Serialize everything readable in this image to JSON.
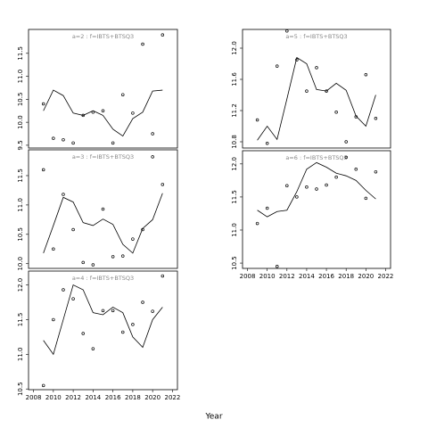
{
  "xlabel": "Year",
  "chart_data": [
    {
      "type": "line",
      "title": "a=2 : f=IBTS+BTSQ3",
      "x": [
        2009,
        2010,
        2011,
        2012,
        2013,
        2014,
        2015,
        2016,
        2017,
        2018,
        2019,
        2020,
        2021
      ],
      "xlim": [
        2007.5,
        2022.5
      ],
      "ylim": [
        9.44,
        12.02
      ],
      "yticks": [
        9.5,
        {
          "value": 10,
          "label": "10.0"
        },
        10.5,
        {
          "value": 11,
          "label": "11.0"
        },
        11.5
      ],
      "series": [
        {
          "style": "line",
          "color": "#000000",
          "values": [
            10.25,
            10.7,
            10.58,
            10.2,
            10.15,
            10.25,
            10.15,
            9.85,
            9.7,
            10.08,
            10.22,
            10.68,
            10.7
          ]
        },
        {
          "style": "points",
          "color": "#000000",
          "values": [
            10.4,
            9.65,
            9.62,
            9.55,
            10.15,
            10.22,
            10.25,
            9.55,
            10.6,
            10.2,
            11.7,
            9.75,
            11.9
          ]
        }
      ]
    },
    {
      "type": "line",
      "title": "a=3 : f=IBTS+BTSQ3",
      "x": [
        2009,
        2010,
        2011,
        2012,
        2013,
        2014,
        2015,
        2016,
        2017,
        2018,
        2019,
        2020,
        2021
      ],
      "xlim": [
        2007.5,
        2022.5
      ],
      "ylim": [
        9.92,
        11.94
      ],
      "yticks": [
        {
          "value": 10,
          "label": "10.0"
        },
        10.5,
        {
          "value": 11,
          "label": "11.0"
        },
        11.5
      ],
      "series": [
        {
          "style": "line",
          "color": "#000000",
          "values": [
            10.18,
            10.65,
            11.13,
            11.05,
            10.7,
            10.65,
            10.76,
            10.67,
            10.33,
            10.18,
            10.6,
            10.75,
            11.2
          ]
        },
        {
          "style": "points",
          "color": "#000000",
          "values": [
            11.6,
            10.25,
            11.18,
            10.58,
            10.02,
            9.98,
            10.93,
            10.12,
            10.13,
            10.42,
            10.58,
            11.82,
            11.35
          ]
        }
      ]
    },
    {
      "type": "line",
      "title": "a=4 : f=IBTS+BTSQ3",
      "x": [
        2009,
        2010,
        2011,
        2012,
        2013,
        2014,
        2015,
        2016,
        2017,
        2018,
        2019,
        2020,
        2021
      ],
      "xlim": [
        2007.5,
        2022.5
      ],
      "ylim": [
        10.49,
        12.2
      ],
      "xticks": [
        2008,
        2010,
        2012,
        2014,
        2016,
        2018,
        2020,
        2022
      ],
      "yticks": [
        10.5,
        {
          "value": 11,
          "label": "11.0"
        },
        11.5,
        {
          "value": 12,
          "label": "12.0"
        }
      ],
      "series": [
        {
          "style": "line",
          "color": "#000000",
          "values": [
            11.2,
            11.0,
            11.5,
            12.0,
            11.93,
            11.6,
            11.57,
            11.68,
            11.6,
            11.25,
            11.1,
            11.5,
            11.68
          ]
        },
        {
          "style": "points",
          "color": "#000000",
          "values": [
            10.55,
            11.5,
            11.93,
            11.8,
            11.3,
            11.08,
            11.63,
            11.63,
            11.32,
            11.43,
            11.75,
            11.62,
            12.13
          ]
        }
      ]
    },
    {
      "type": "line",
      "title": "a=5 : f=IBTS+BTSQ3",
      "x": [
        2009,
        2010,
        2011,
        2012,
        2013,
        2014,
        2015,
        2016,
        2017,
        2018,
        2019,
        2020,
        2021
      ],
      "xlim": [
        2007.5,
        2022.5
      ],
      "ylim": [
        10.72,
        12.24
      ],
      "yticks": [
        10.8,
        11.2,
        11.6,
        {
          "value": 12,
          "label": "12.0"
        }
      ],
      "series": [
        {
          "style": "line",
          "color": "#000000",
          "values": [
            10.82,
            11.0,
            10.83,
            11.35,
            11.88,
            11.8,
            11.47,
            11.45,
            11.55,
            11.46,
            11.13,
            11.0,
            11.4
          ]
        },
        {
          "style": "points",
          "color": "#000000",
          "values": [
            11.08,
            10.78,
            11.77,
            12.22,
            11.85,
            11.45,
            11.75,
            11.45,
            11.18,
            10.8,
            11.12,
            11.66,
            11.1
          ]
        }
      ]
    },
    {
      "type": "line",
      "title": "a=6 : f=IBTS+BTSQ3",
      "x": [
        2009,
        2010,
        2011,
        2012,
        2013,
        2014,
        2015,
        2016,
        2017,
        2018,
        2019,
        2020,
        2021
      ],
      "xlim": [
        2007.5,
        2022.5
      ],
      "ylim": [
        10.42,
        12.2
      ],
      "xticks": [
        2008,
        2010,
        2012,
        2014,
        2016,
        2018,
        2020,
        2022
      ],
      "yticks": [
        10.5,
        {
          "value": 11,
          "label": "11.0"
        },
        11.5,
        {
          "value": 12,
          "label": "12.0"
        }
      ],
      "series": [
        {
          "style": "line",
          "color": "#000000",
          "values": [
            11.3,
            11.2,
            11.28,
            11.3,
            11.58,
            11.92,
            12.02,
            11.95,
            11.86,
            11.82,
            11.75,
            11.6,
            11.47
          ]
        },
        {
          "style": "points",
          "color": "#000000",
          "values": [
            11.1,
            11.33,
            10.45,
            11.67,
            11.5,
            11.65,
            11.62,
            11.68,
            11.8,
            12.1,
            11.92,
            11.48,
            11.88
          ]
        }
      ]
    }
  ]
}
